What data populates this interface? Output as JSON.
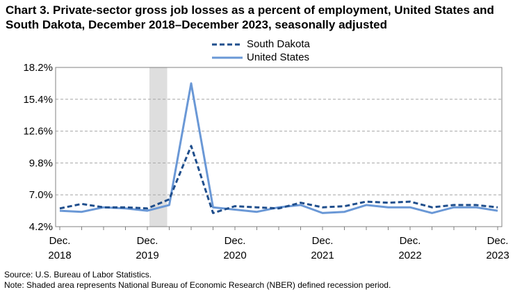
{
  "title": "Chart 3. Private-sector gross job losses as a percent of employment, United States and South Dakota, December 2018–December 2023, seasonally adjusted",
  "footer": {
    "source": "Source: U.S. Bureau of Labor Statistics.",
    "note": "Note: Shaded area represents National Bureau of Economic Research (NBER) defined recession period."
  },
  "chart_data": {
    "type": "line",
    "x": [
      "Dec. 2018",
      "Mar. 2019",
      "Jun. 2019",
      "Sep. 2019",
      "Dec. 2019",
      "Mar. 2020",
      "Jun. 2020",
      "Sep. 2020",
      "Dec. 2020",
      "Mar. 2021",
      "Jun. 2021",
      "Sep. 2021",
      "Dec. 2021",
      "Mar. 2022",
      "Jun. 2022",
      "Sep. 2022",
      "Dec. 2022",
      "Mar. 2023",
      "Jun. 2023",
      "Sep. 2023",
      "Dec. 2023"
    ],
    "x_tick_labels": [
      {
        "month": "Dec.",
        "year": "2018",
        "index": 0
      },
      {
        "month": "Dec.",
        "year": "2019",
        "index": 4
      },
      {
        "month": "Dec.",
        "year": "2020",
        "index": 8
      },
      {
        "month": "Dec.",
        "year": "2021",
        "index": 12
      },
      {
        "month": "Dec.",
        "year": "2022",
        "index": 16
      },
      {
        "month": "Dec.",
        "year": "2023",
        "index": 20
      }
    ],
    "y_ticks": [
      "4.2%",
      "7.0%",
      "9.8%",
      "12.6%",
      "15.4%",
      "18.2%"
    ],
    "ylim": [
      4.2,
      18.2
    ],
    "grid": true,
    "legend_position": "top-center",
    "recession": {
      "from": "Dec. 2019",
      "to": "Mar. 2020"
    },
    "series": [
      {
        "name": "South Dakota",
        "style": "dashed",
        "color": "#1f4e8c",
        "values": [
          5.8,
          6.2,
          5.9,
          5.9,
          5.8,
          6.6,
          11.3,
          5.4,
          6.0,
          5.9,
          5.8,
          6.3,
          5.9,
          6.0,
          6.4,
          6.3,
          6.4,
          5.9,
          6.1,
          6.1,
          5.9
        ]
      },
      {
        "name": "United States",
        "style": "solid",
        "color": "#6a98d6",
        "values": [
          5.6,
          5.5,
          5.9,
          5.8,
          5.6,
          6.1,
          16.8,
          5.9,
          5.7,
          5.5,
          5.9,
          6.1,
          5.4,
          5.5,
          6.1,
          5.9,
          5.9,
          5.4,
          5.9,
          5.9,
          5.6
        ]
      }
    ]
  }
}
